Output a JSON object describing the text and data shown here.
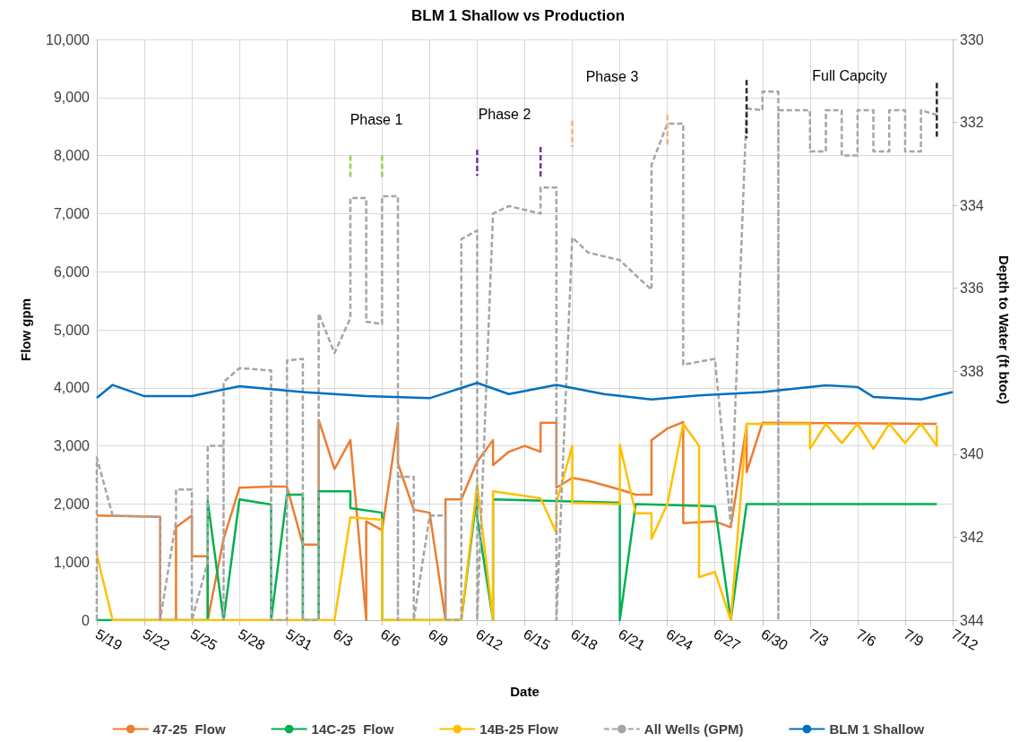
{
  "chart_data": {
    "type": "line",
    "title": "BLM 1 Shallow vs Production",
    "xlabel": "Date",
    "ylabel": "Flow gpm",
    "y2label": "Depth to Water (ft btoc)",
    "marker": "none",
    "grid": true,
    "legend": "bottom",
    "xlim": [
      "--05-19",
      "--07-12"
    ],
    "xticks": [
      {
        "value": "--05-19",
        "label": "5/19"
      },
      {
        "value": "--05-22",
        "label": "5/22"
      },
      {
        "value": "--05-25",
        "label": "5/25"
      },
      {
        "value": "--05-28",
        "label": "5/28"
      },
      {
        "value": "--05-31",
        "label": "5/31"
      },
      {
        "value": "--06-03",
        "label": "6/3"
      },
      {
        "value": "--06-06",
        "label": "6/6"
      },
      {
        "value": "--06-09",
        "label": "6/9"
      },
      {
        "value": "--06-12",
        "label": "6/12"
      },
      {
        "value": "--06-15",
        "label": "6/15"
      },
      {
        "value": "--06-18",
        "label": "6/18"
      },
      {
        "value": "--06-21",
        "label": "6/21"
      },
      {
        "value": "--06-24",
        "label": "6/24"
      },
      {
        "value": "--06-27",
        "label": "6/27"
      },
      {
        "value": "--06-30",
        "label": "6/30"
      },
      {
        "value": "--07-03",
        "label": "7/3"
      },
      {
        "value": "--07-06",
        "label": "7/6"
      },
      {
        "value": "--07-09",
        "label": "7/9"
      },
      {
        "value": "--07-12",
        "label": "7/12"
      }
    ],
    "ylim": [
      0,
      10000
    ],
    "yticks": [
      0,
      {
        "value": 1000,
        "label": "1,000"
      },
      {
        "value": 2000,
        "label": "2,000"
      },
      {
        "value": 3000,
        "label": "3,000"
      },
      {
        "value": 4000,
        "label": "4,000"
      },
      {
        "value": 5000,
        "label": "5,000"
      },
      {
        "value": 6000,
        "label": "6,000"
      },
      {
        "value": 7000,
        "label": "7,000"
      },
      {
        "value": 8000,
        "label": "8,000"
      },
      {
        "value": 9000,
        "label": "9,000"
      },
      {
        "value": 10000,
        "label": "10,000"
      }
    ],
    "y2lim": [
      344,
      330
    ],
    "y2ticks": [
      330,
      332,
      334,
      336,
      338,
      340,
      342,
      344
    ],
    "annotations": [
      "Phase 1",
      "Phase 2",
      "Phase 3",
      "Full Capcity"
    ],
    "series": [
      {
        "name": "47-25  Flow",
        "color": "#ed7d31",
        "x": [
          "--05-19",
          "--05-23",
          "--05-23",
          "--05-24",
          "--05-24",
          "--05-25",
          "--05-25",
          "--05-26",
          "--05-26",
          "--05-27",
          "--05-28",
          "--05-30",
          "--05-31",
          "--06-01",
          "--06-02",
          "--06-02",
          "--06-03",
          "--06-04",
          "--06-05",
          "--06-05",
          "--06-06",
          "--06-07",
          "--06-07",
          "--06-08",
          "--06-09",
          "--06-10",
          "--06-10",
          "--06-11",
          "--06-12",
          "--06-13",
          "--06-13",
          "--06-14",
          "--06-15",
          "--06-16",
          "--06-16",
          "--06-17",
          "--06-17",
          "--06-18",
          "--06-19",
          "--06-21",
          "--06-22",
          "--06-23",
          "--06-23",
          "--06-24",
          "--06-25",
          "--06-25",
          "--06-27",
          "--06-28",
          "--06-29",
          "--06-29",
          "--06-30",
          "--07-11"
        ],
        "values": [
          1800,
          1780,
          0,
          0,
          1600,
          1800,
          1100,
          1100,
          0,
          1400,
          2280,
          2300,
          2300,
          1300,
          1300,
          3450,
          2600,
          3100,
          0,
          1700,
          1550,
          3400,
          2700,
          1900,
          1850,
          0,
          2080,
          2080,
          2730,
          3100,
          2670,
          2900,
          3000,
          2900,
          3400,
          3400,
          2280,
          2450,
          2400,
          2250,
          2160,
          2160,
          3100,
          3300,
          3410,
          1670,
          1700,
          1600,
          3350,
          2550,
          3400,
          3380
        ]
      },
      {
        "name": "14C-25  Flow",
        "color": "#00b050",
        "x": [
          "--05-19",
          "--05-26",
          "--05-26",
          "--05-27",
          "--05-28",
          "--05-30",
          "--05-30",
          "--05-31",
          "--06-01",
          "--06-01",
          "--06-02",
          "--06-02",
          "--06-04",
          "--06-04",
          "--06-06",
          "--06-06",
          "--06-11",
          "--06-12",
          "--06-12",
          "--06-13",
          "--06-13",
          "--06-21",
          "--06-21",
          "--06-22",
          "--06-27",
          "--06-28",
          "--06-29",
          "--07-11"
        ],
        "values": [
          0,
          0,
          2050,
          0,
          2080,
          1990,
          0,
          2160,
          2160,
          0,
          0,
          2220,
          2220,
          1930,
          1850,
          0,
          0,
          2190,
          1770,
          0,
          2080,
          2020,
          0,
          2000,
          1960,
          0,
          2000,
          2000
        ]
      },
      {
        "name": "14B-25 Flow",
        "color": "#ffc000",
        "x": [
          "--05-19",
          "--05-20",
          "--06-03",
          "--06-04",
          "--06-06",
          "--06-06",
          "--06-11",
          "--06-12",
          "--06-13",
          "--06-13",
          "--06-16",
          "--06-17",
          "--06-17",
          "--06-18",
          "--06-18",
          "--06-21",
          "--06-21",
          "--06-22",
          "--06-23",
          "--06-23",
          "--06-24",
          "--06-25",
          "--06-26",
          "--06-26",
          "--06-27",
          "--06-28",
          "--06-29",
          "--07-03",
          "--07-03",
          "--07-04",
          "--07-05",
          "--07-06",
          "--07-07",
          "--07-08",
          "--07-09",
          "--07-10",
          "--07-11",
          "--07-11"
        ],
        "values": [
          1130,
          0,
          0,
          1770,
          1730,
          0,
          0,
          2340,
          0,
          2220,
          2100,
          1500,
          2020,
          3000,
          2020,
          2000,
          3020,
          1840,
          1840,
          1400,
          2000,
          3380,
          3000,
          740,
          830,
          0,
          3380,
          3380,
          2950,
          3380,
          3050,
          3380,
          2950,
          3380,
          3050,
          3380,
          3000,
          3350
        ]
      },
      {
        "name": "All Wells (GPM)",
        "color": "#a5a5a5",
        "line_style": "dashed",
        "x": [
          "--05-19",
          "--05-19",
          "--05-20",
          "--05-23",
          "--05-23",
          "--05-24",
          "--05-24",
          "--05-25",
          "--05-25",
          "--05-26",
          "--05-26",
          "--05-27",
          "--05-27",
          "--05-27",
          "--05-28",
          "--05-30",
          "--05-30",
          "--05-31",
          "--05-31",
          "--06-01",
          "--06-01",
          "--06-02",
          "--06-02",
          "--06-03",
          "--06-04",
          "--06-04",
          "--06-05",
          "--06-05",
          "--06-06",
          "--06-06",
          "--06-07",
          "--06-07",
          "--06-07",
          "--06-08",
          "--06-08",
          "--06-09",
          "--06-10",
          "--06-10",
          "--06-11",
          "--06-11",
          "--06-12",
          "--06-12",
          "--06-13",
          "--06-14",
          "--06-16",
          "--06-16",
          "--06-17",
          "--06-17",
          "--06-18",
          "--06-19",
          "--06-21",
          "--06-22",
          "--06-23",
          "--06-23",
          "--06-24",
          "--06-25",
          "--06-25",
          "--06-27",
          "--06-28",
          "--06-29",
          "--06-30",
          "--06-30",
          "--07-01",
          "--07-01",
          "--07-01",
          "--07-03",
          "--07-03",
          "--07-04",
          "--07-04",
          "--07-05",
          "--07-05",
          "--07-06",
          "--07-06",
          "--07-07",
          "--07-07",
          "--07-08",
          "--07-08",
          "--07-09",
          "--07-09",
          "--07-10",
          "--07-10",
          "--07-11"
        ],
        "values": [
          0,
          2800,
          1800,
          1780,
          0,
          1700,
          2250,
          2250,
          0,
          1000,
          3000,
          3000,
          0,
          4100,
          4340,
          4300,
          0,
          0,
          4470,
          4500,
          0,
          0,
          5280,
          4600,
          5200,
          7270,
          7270,
          5140,
          5100,
          7300,
          7300,
          0,
          2470,
          2470,
          0,
          1800,
          1800,
          0,
          0,
          6560,
          6710,
          0,
          7000,
          7130,
          7000,
          7450,
          7450,
          0,
          6590,
          6330,
          6200,
          5940,
          5690,
          7840,
          8550,
          8550,
          4400,
          4500,
          1640,
          8810,
          8780,
          9100,
          9100,
          0,
          8780,
          8780,
          8070,
          8070,
          8780,
          8780,
          8000,
          8000,
          8780,
          8780,
          8070,
          8070,
          8780,
          8780,
          8070,
          8070,
          8780,
          8700
        ]
      },
      {
        "name": "BLM 1 Shallow",
        "color": "#0070c0",
        "axis": "y2",
        "x": [
          "--05-19",
          "--05-20",
          "--05-22",
          "--05-25",
          "--05-28",
          "--06-01",
          "--06-05",
          "--06-09",
          "--06-12",
          "--06-14",
          "--06-17",
          "--06-20",
          "--06-23",
          "--06-26",
          "--06-30",
          "--07-04",
          "--07-06",
          "--07-07",
          "--07-10",
          "--07-12"
        ],
        "values": [
          338.64,
          338.33,
          338.6,
          338.6,
          338.36,
          338.5,
          338.6,
          338.65,
          338.28,
          338.55,
          338.33,
          338.55,
          338.68,
          338.58,
          338.5,
          338.34,
          338.38,
          338.62,
          338.68,
          338.5
        ]
      },
      {
        "color": "#92d050",
        "line_style": "dashed",
        "x": [
          "--06-04",
          "--06-04",
          null,
          "--06-06",
          "--06-06"
        ],
        "values": [
          8000,
          7600,
          null,
          8000,
          7600
        ]
      },
      {
        "color": "#7030a0",
        "line_style": "dashed",
        "x": [
          "--06-12",
          "--06-12",
          null,
          "--06-16",
          "--06-16"
        ],
        "values": [
          8100,
          7650,
          null,
          8150,
          7600
        ]
      },
      {
        "color": "#f4b183",
        "line_style": "dashed",
        "x": [
          "--06-18",
          "--06-18",
          null,
          "--06-24",
          "--06-24"
        ],
        "values": [
          8600,
          8150,
          null,
          8700,
          8150
        ]
      },
      {
        "color": "#1e2e1e",
        "line_style": "dashed",
        "x": [
          "--06-29",
          "--06-29",
          null,
          "--07-11",
          "--07-11"
        ],
        "values": [
          9300,
          8300,
          null,
          9250,
          8300
        ]
      }
    ]
  }
}
